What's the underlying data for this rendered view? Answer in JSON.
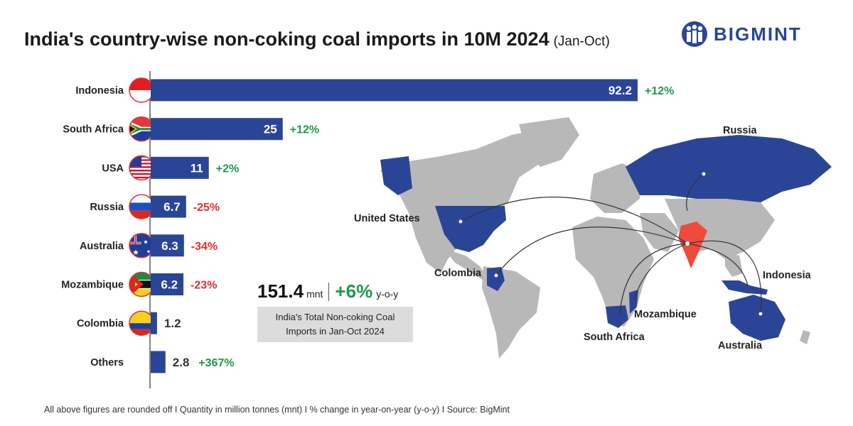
{
  "header": {
    "title": "India's country-wise non-coking coal imports in 10M 2024",
    "title_suffix": "(Jan-Oct)"
  },
  "logo": {
    "text": "BIGMINT",
    "brand_color": "#2a4595"
  },
  "chart_data": {
    "type": "bar",
    "orientation": "horizontal",
    "title": "India's country-wise non-coking coal imports in 10M 2024 (Jan-Oct)",
    "unit": "mnt",
    "categories": [
      "Indonesia",
      "South Africa",
      "USA",
      "Russia",
      "Australia",
      "Mozambique",
      "Colombia",
      "Others"
    ],
    "values": [
      92.2,
      25,
      11,
      6.7,
      6.3,
      6.2,
      1.2,
      2.8
    ],
    "value_labels": [
      "92.2",
      "25",
      "11",
      "6.7",
      "6.3",
      "6.2",
      "1.2",
      "2.8"
    ],
    "changes": [
      "+12%",
      "+12%",
      "+2%",
      "-25%",
      "-34%",
      "-23%",
      "",
      "+367%"
    ],
    "change_signs": [
      "pos",
      "pos",
      "pos",
      "neg",
      "neg",
      "neg",
      "none",
      "pos"
    ],
    "flags": [
      "indonesia-flag",
      "south-africa-flag",
      "usa-flag",
      "russia-flag",
      "australia-flag",
      "mozambique-flag",
      "colombia-flag",
      ""
    ],
    "xlim": [
      0,
      92.2
    ],
    "bar_color": "#2a4595",
    "positive_color": "#1f9a4a",
    "negative_color": "#e03030"
  },
  "total": {
    "value": "151.4",
    "unit": "mnt",
    "change": "+6%",
    "change_suffix": "y-o-y",
    "caption_line1": "India's Total Non-coking Coal",
    "caption_line2": "Imports in Jan-Oct 2024"
  },
  "map": {
    "labels": {
      "russia": "Russia",
      "united_states": "United States",
      "colombia": "Colombia",
      "indonesia": "Indonesia",
      "mozambique": "Mozambique",
      "south_africa": "South Africa",
      "australia": "Australia"
    },
    "highlight_color": "#2a4595",
    "india_color": "#f04a3c",
    "land_color": "#b8b8b8"
  },
  "footnote": "All above figures are rounded off  I  Quantity in million tonnes (mnt)  I  % change in year-on-year (y-o-y)  I  Source: BigMint"
}
